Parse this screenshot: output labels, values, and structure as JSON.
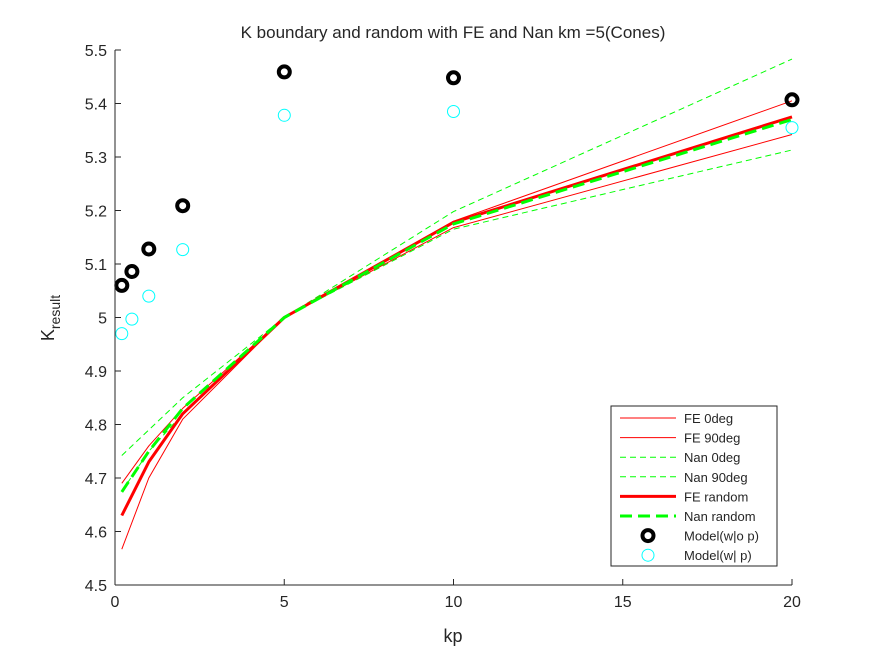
{
  "chart_data": {
    "type": "line",
    "title": "K boundary and random with FE and Nan km =5(Cones)",
    "xlabel": "kp",
    "ylabel_main": "K",
    "ylabel_sub": "result",
    "xlim": [
      0,
      20
    ],
    "ylim": [
      4.5,
      5.5
    ],
    "xticks": [
      0,
      5,
      10,
      15,
      20
    ],
    "xtick_labels": [
      "0",
      "5",
      "10",
      "15",
      "20"
    ],
    "yticks": [
      4.5,
      4.6,
      4.7,
      4.8,
      4.9,
      5.0,
      5.1,
      5.2,
      5.3,
      5.4,
      5.5
    ],
    "ytick_labels": [
      "4.5",
      "4.6",
      "4.7",
      "4.8",
      "4.9",
      "5",
      "5.1",
      "5.2",
      "5.3",
      "5.4",
      "5.5"
    ],
    "grid": false,
    "legend_position": "bottom-right",
    "series": [
      {
        "name": "FE 0deg",
        "kind": "line",
        "color": "#ff0000",
        "width": 1,
        "dash": "solid",
        "x": [
          0.2,
          1,
          2,
          5,
          10,
          20
        ],
        "y": [
          4.69,
          4.76,
          4.83,
          5.0,
          5.18,
          5.405
        ]
      },
      {
        "name": "FE 90deg",
        "kind": "line",
        "color": "#ff0000",
        "width": 1,
        "dash": "solid",
        "x": [
          0.2,
          1,
          2,
          5,
          10,
          20
        ],
        "y": [
          4.567,
          4.7,
          4.81,
          5.0,
          5.168,
          5.342
        ]
      },
      {
        "name": "Nan 0deg",
        "kind": "line",
        "color": "#00ff00",
        "width": 1,
        "dash": "dashed",
        "x": [
          0.2,
          1,
          2,
          5,
          10,
          20
        ],
        "y": [
          4.742,
          4.79,
          4.85,
          5.0,
          5.198,
          5.483
        ]
      },
      {
        "name": "Nan 90deg",
        "kind": "line",
        "color": "#00ff00",
        "width": 1,
        "dash": "dashed",
        "x": [
          0.2,
          1,
          2,
          5,
          10,
          20
        ],
        "y": [
          4.675,
          4.75,
          4.82,
          5.0,
          5.165,
          5.313
        ]
      },
      {
        "name": "FE random",
        "kind": "line",
        "color": "#ff0000",
        "width": 3,
        "dash": "solid",
        "x": [
          0.2,
          1,
          2,
          5,
          10,
          20
        ],
        "y": [
          4.63,
          4.73,
          4.82,
          5.0,
          5.178,
          5.375
        ]
      },
      {
        "name": "Nan random",
        "kind": "line",
        "color": "#00ff00",
        "width": 3,
        "dash": "dashed",
        "x": [
          0.2,
          1,
          2,
          5,
          10,
          20
        ],
        "y": [
          4.674,
          4.75,
          4.83,
          5.0,
          5.175,
          5.37
        ]
      },
      {
        "name": "Model(w|o p)",
        "kind": "marker",
        "color": "#000000",
        "width": 4,
        "x": [
          0.2,
          0.5,
          1,
          2,
          5,
          10,
          20
        ],
        "y": [
          5.06,
          5.086,
          5.128,
          5.209,
          5.459,
          5.448,
          5.407
        ]
      },
      {
        "name": "Model(w| p)",
        "kind": "marker",
        "color": "#00ffff",
        "width": 1,
        "x": [
          0.2,
          0.5,
          1,
          2,
          5,
          10,
          20
        ],
        "y": [
          4.97,
          4.997,
          5.04,
          5.127,
          5.378,
          5.385,
          5.355
        ]
      }
    ]
  }
}
